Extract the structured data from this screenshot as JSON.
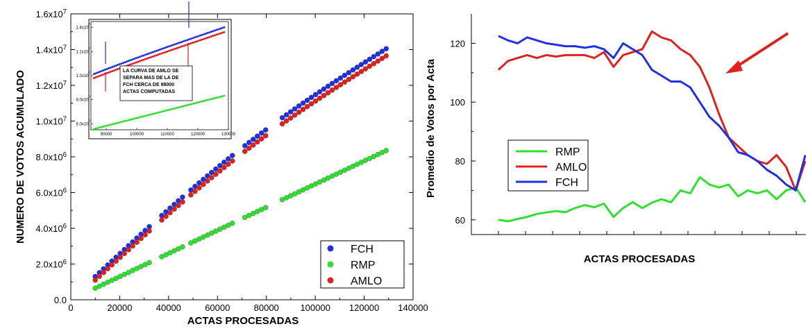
{
  "chart_data": [
    {
      "type": "scatter",
      "xlabel": "ACTAS PROCESADAS",
      "ylabel": "NUMERO DE VOTOS ACUMULADO",
      "xlim": [
        0,
        140000
      ],
      "ylim": [
        0,
        16000000
      ],
      "x_ticks": [
        "0",
        "20000",
        "40000",
        "60000",
        "80000",
        "100000",
        "120000",
        "140000"
      ],
      "y_ticks": [
        "0.0",
        "2.0x10^6",
        "4.0x10^6",
        "6.0x10^6",
        "8.0x10^6",
        "1.0x10^7",
        "1.2x10^7",
        "1.4x10^7",
        "1.6x10^7"
      ],
      "legend": {
        "position": "bottom-right",
        "entries": [
          "FCH",
          "RMP",
          "AMLO"
        ]
      },
      "series": [
        {
          "name": "FCH",
          "color": "#2030e0",
          "x_range": [
            10000,
            129000
          ],
          "y_range": [
            1300000,
            14050000
          ]
        },
        {
          "name": "RMP",
          "color": "#30e030",
          "x_range": [
            10000,
            129000
          ],
          "y_range": [
            650000,
            8350000
          ]
        },
        {
          "name": "AMLO",
          "color": "#e02020",
          "x_range": [
            10000,
            129000
          ],
          "y_range": [
            1100000,
            13650000
          ]
        }
      ],
      "inset": {
        "xlim": [
          85000,
          130000
        ],
        "ylim": [
          5500000,
          14500000
        ],
        "x_ticks": [
          "90000",
          "100000",
          "110000",
          "120000",
          "130000"
        ],
        "y_ticks": [
          "6.0x10^6",
          "8.0x10^6",
          "1.0x10^7",
          "1.2x10^7",
          "1.4x10^7"
        ],
        "annotation": [
          "LA CURVA DE AMLO SE",
          "SEPARA MAS DE LA DE",
          "FCH CERCA DE 98000",
          "ACTAS COMPUTADAS"
        ]
      }
    },
    {
      "type": "line",
      "xlabel": "ACTAS PROCESADAS",
      "ylabel": "Promedio de Votos por Acta",
      "ylim": [
        55,
        130
      ],
      "y_ticks": [
        "60",
        "80",
        "100",
        "120"
      ],
      "legend": {
        "position": "middle-left",
        "entries": [
          "RMP",
          "AMLO",
          "FCH"
        ]
      },
      "series": [
        {
          "name": "RMP",
          "color": "#30e030",
          "values": [
            60,
            59.5,
            60.3,
            61,
            62,
            62.5,
            63,
            62.6,
            64,
            65,
            64.3,
            65.5,
            61,
            64,
            66,
            64,
            65.8,
            67,
            66,
            70,
            69,
            74.5,
            72,
            71,
            72,
            68,
            70,
            69,
            70,
            67,
            70,
            71,
            66
          ]
        },
        {
          "name": "AMLO",
          "color": "#e02020",
          "values": [
            111,
            114,
            115,
            116,
            115,
            116,
            115.5,
            116,
            116,
            116,
            115,
            117,
            112,
            116,
            117,
            118,
            124,
            122,
            121,
            118,
            116,
            112,
            105,
            96,
            88,
            85,
            82,
            80,
            79,
            82,
            78,
            70,
            80
          ]
        },
        {
          "name": "FCH",
          "color": "#2030e0",
          "values": [
            122.5,
            121,
            120,
            122,
            121,
            120,
            119.5,
            119,
            119,
            118.5,
            119,
            118,
            115,
            120,
            118,
            116,
            111,
            109,
            107,
            107,
            105,
            100,
            95,
            92,
            88,
            83,
            82,
            80,
            77,
            75,
            72,
            70,
            82
          ]
        }
      ]
    }
  ]
}
